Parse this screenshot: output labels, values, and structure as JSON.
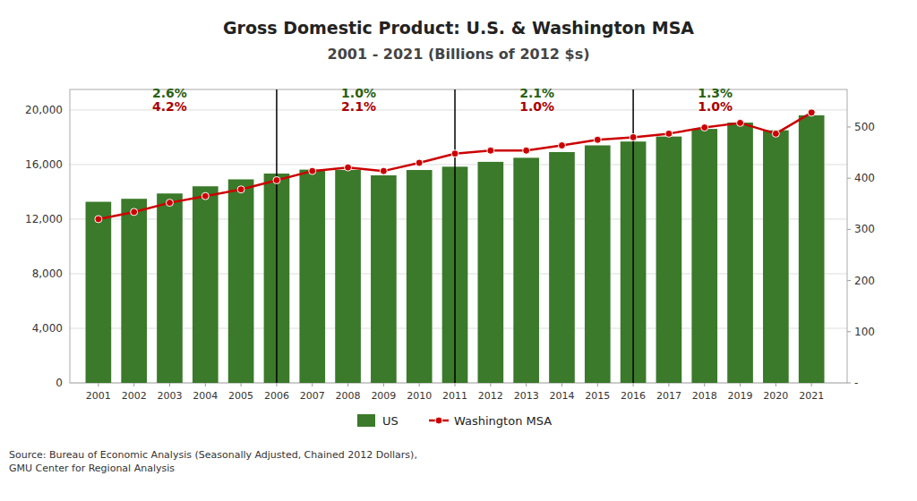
{
  "chart_data": {
    "type": "bar",
    "title": "Gross Domestic Product: U.S. & Washington MSA",
    "subtitle": "2001 - 2021 (Billions of 2012 $s)",
    "x": [
      2001,
      2002,
      2003,
      2004,
      2005,
      2006,
      2007,
      2008,
      2009,
      2010,
      2011,
      2012,
      2013,
      2014,
      2015,
      2016,
      2017,
      2018,
      2019,
      2020,
      2021
    ],
    "xlim": [
      2000.2,
      2022.0
    ],
    "xticks": [
      2001,
      2002,
      2003,
      2004,
      2005,
      2006,
      2007,
      2008,
      2009,
      2010,
      2011,
      2012,
      2013,
      2014,
      2015,
      2016,
      2017,
      2018,
      2019,
      2020,
      2021
    ],
    "ylim": [
      0,
      21500
    ],
    "yticks": [
      0,
      {
        "value": 4000,
        "label": "4,000"
      },
      {
        "value": 8000,
        "label": "8,000"
      },
      {
        "value": 12000,
        "label": "12,000"
      },
      {
        "value": 16000,
        "label": "16,000"
      },
      {
        "value": 20000,
        "label": "20,000"
      }
    ],
    "y2lim": [
      0,
      573.33
    ],
    "y2ticks": [
      {
        "value": 0,
        "label": "-"
      },
      100,
      200,
      300,
      400,
      500
    ],
    "series": [
      {
        "name": "US",
        "type": "bar",
        "color": "#3a7a2a",
        "values": [
          13270,
          13490,
          13879,
          14406,
          14913,
          15338,
          15627,
          15605,
          15209,
          15599,
          15841,
          16197,
          16495,
          16912,
          17404,
          17685,
          18051,
          18610,
          19073,
          18509,
          19609
        ]
      },
      {
        "name": "Washington MSA",
        "type": "line",
        "color": "#cc0000",
        "marker": "circle",
        "axis": "y2",
        "values": [
          320,
          334,
          352,
          365,
          378,
          396,
          414,
          421,
          414,
          430,
          448,
          454,
          454,
          464,
          475,
          480,
          487,
          499,
          508,
          487,
          528
        ]
      }
    ],
    "grid": true,
    "legend": "bottom",
    "vertical_lines": [
      2006,
      2011,
      2016
    ],
    "annotations": [
      {
        "x": 2003.0,
        "y": 20700,
        "text": "2.6%",
        "color": "#2a6010"
      },
      {
        "x": 2003.0,
        "y": 19700,
        "text": "4.2%",
        "color": "#aa0000"
      },
      {
        "x": 2008.3,
        "y": 20700,
        "text": "1.0%",
        "color": "#2a6010"
      },
      {
        "x": 2008.3,
        "y": 19700,
        "text": "2.1%",
        "color": "#aa0000"
      },
      {
        "x": 2013.3,
        "y": 20700,
        "text": "2.1%",
        "color": "#2a6010"
      },
      {
        "x": 2013.3,
        "y": 19700,
        "text": "1.0%",
        "color": "#aa0000"
      },
      {
        "x": 2018.3,
        "y": 20700,
        "text": "1.3%",
        "color": "#2a6010"
      },
      {
        "x": 2018.3,
        "y": 19700,
        "text": "1.0%",
        "color": "#aa0000"
      }
    ],
    "source": "Source: Bureau of Economic Analysis (Seasonally Adjusted, Chained 2012 Dollars),\nGMU Center for Regional Analysis"
  }
}
